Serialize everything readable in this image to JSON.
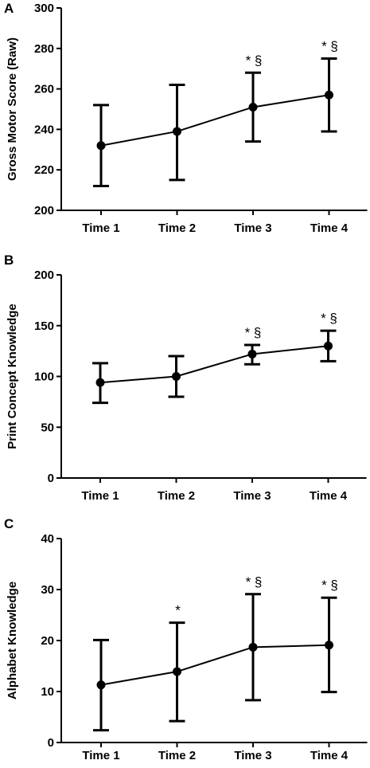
{
  "chart_data": [
    {
      "panel_letter": "A",
      "type": "line",
      "ylabel": "Gross Motor Score (Raw)",
      "xlabel": "",
      "ylim": [
        200,
        300
      ],
      "yticks": [
        200,
        220,
        240,
        260,
        280,
        300
      ],
      "categories": [
        "Time 1",
        "Time 2",
        "Time 3",
        "Time 4"
      ],
      "series": [
        {
          "values": [
            232,
            239,
            251,
            257
          ],
          "error_lower": [
            212,
            215,
            234,
            239
          ],
          "error_upper": [
            252,
            262,
            268,
            275
          ]
        }
      ],
      "annotations": [
        "",
        "",
        "* §",
        "* §"
      ],
      "grid": false
    },
    {
      "panel_letter": "B",
      "type": "line",
      "ylabel": "Print Concept Knowledge",
      "xlabel": "",
      "ylim": [
        0,
        200
      ],
      "yticks": [
        0,
        50,
        100,
        150,
        200
      ],
      "categories": [
        "Time 1",
        "Time 2",
        "Time 3",
        "Time 4"
      ],
      "series": [
        {
          "values": [
            94,
            100,
            122,
            130
          ],
          "error_lower": [
            74,
            80,
            112,
            115
          ],
          "error_upper": [
            113,
            120,
            131,
            145
          ]
        }
      ],
      "annotations": [
        "",
        "",
        "* §",
        "* §"
      ],
      "grid": false
    },
    {
      "panel_letter": "C",
      "type": "line",
      "ylabel": "Alphabet Knowledge",
      "xlabel": "",
      "ylim": [
        0,
        40
      ],
      "yticks": [
        0,
        10,
        20,
        30,
        40
      ],
      "categories": [
        "Time 1",
        "Time 2",
        "Time 3",
        "Time 4"
      ],
      "series": [
        {
          "values": [
            11.3,
            13.9,
            18.7,
            19.1
          ],
          "error_lower": [
            2.4,
            4.2,
            8.3,
            9.9
          ],
          "error_upper": [
            20.1,
            23.5,
            29.1,
            28.4
          ]
        }
      ],
      "annotations": [
        "",
        "*",
        "* §",
        "* §"
      ],
      "grid": false
    }
  ]
}
